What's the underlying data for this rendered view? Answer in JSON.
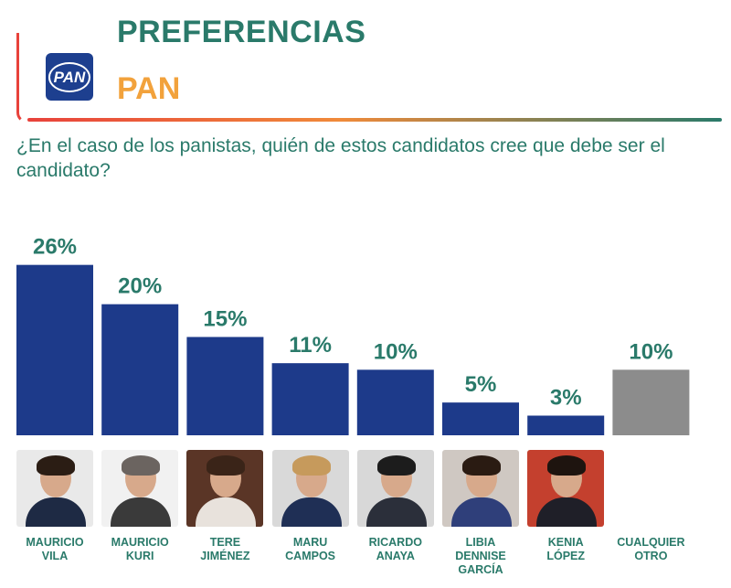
{
  "header": {
    "logo_text": "PAN",
    "title": "PREFERENCIAS",
    "subtitle": "PAN",
    "question": "¿En el caso de los panistas, quién de estos candidatos cree que debe ser el candidato?"
  },
  "chart_data": {
    "type": "bar",
    "categories": [
      "MAURICIO\nVILA",
      "MAURICIO\nKURI",
      "TERE\nJIMÉNEZ",
      "MARU\nCAMPOS",
      "RICARDO\nANAYA",
      "LIBIA\nDENNISE\nGARCÍA",
      "KENIA\nLÓPEZ",
      "CUALQUIER\nOTRO"
    ],
    "values": [
      26,
      20,
      15,
      11,
      10,
      5,
      3,
      10
    ],
    "value_labels": [
      "26%",
      "20%",
      "15%",
      "11%",
      "10%",
      "5%",
      "3%",
      "10%"
    ],
    "ylim": [
      0,
      30
    ],
    "grid": false,
    "colors": [
      "#1d3a8a",
      "#1d3a8a",
      "#1d3a8a",
      "#1d3a8a",
      "#1d3a8a",
      "#1d3a8a",
      "#1d3a8a",
      "#8c8c8c"
    ]
  },
  "photos": [
    {
      "icon": "candidate-photo",
      "bg": "#e9e9e9",
      "hair": "#2b1d14",
      "clothes": "#1e2a44"
    },
    {
      "icon": "candidate-photo",
      "bg": "#f1f1f1",
      "hair": "#6b6460",
      "clothes": "#3a3a3a"
    },
    {
      "icon": "candidate-photo",
      "bg": "#5a3526",
      "hair": "#3a2418",
      "clothes": "#e8e2dc"
    },
    {
      "icon": "candidate-photo",
      "bg": "#d9d9d9",
      "hair": "#c69a5c",
      "clothes": "#1f2f55"
    },
    {
      "icon": "candidate-photo",
      "bg": "#d8d8d8",
      "hair": "#1c1c1c",
      "clothes": "#2b2f3a"
    },
    {
      "icon": "candidate-photo",
      "bg": "#cfc8c2",
      "hair": "#2a1b12",
      "clothes": "#2f3f7a"
    },
    {
      "icon": "candidate-photo",
      "bg": "#c4402e",
      "hair": "#1e140f",
      "clothes": "#1f1f28"
    }
  ]
}
